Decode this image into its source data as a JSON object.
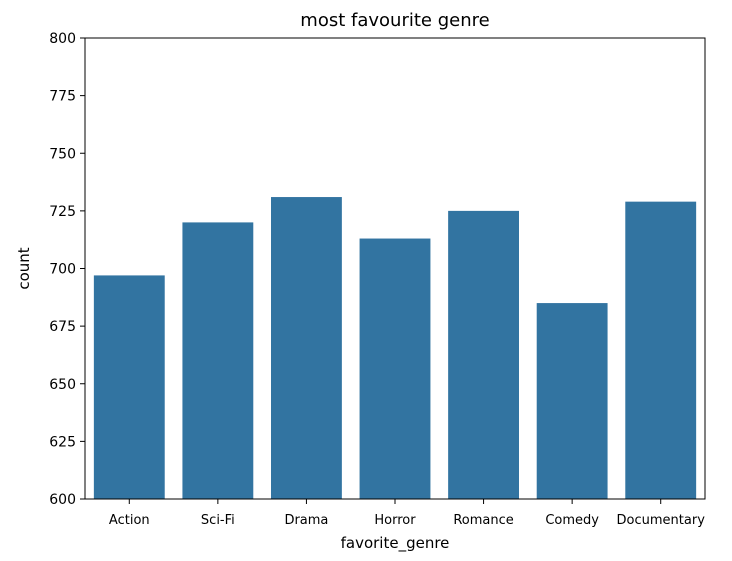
{
  "chart_data": {
    "type": "bar",
    "title": "most favourite genre",
    "xlabel": "favorite_genre",
    "ylabel": "count",
    "categories": [
      "Action",
      "Sci-Fi",
      "Drama",
      "Horror",
      "Romance",
      "Comedy",
      "Documentary"
    ],
    "values": [
      697,
      720,
      731,
      713,
      725,
      685,
      729
    ],
    "ylim": [
      600,
      800
    ],
    "yticks": [
      600,
      625,
      650,
      675,
      700,
      725,
      750,
      775,
      800
    ],
    "bar_color": "#3274a1",
    "grid": false,
    "legend": "none"
  }
}
